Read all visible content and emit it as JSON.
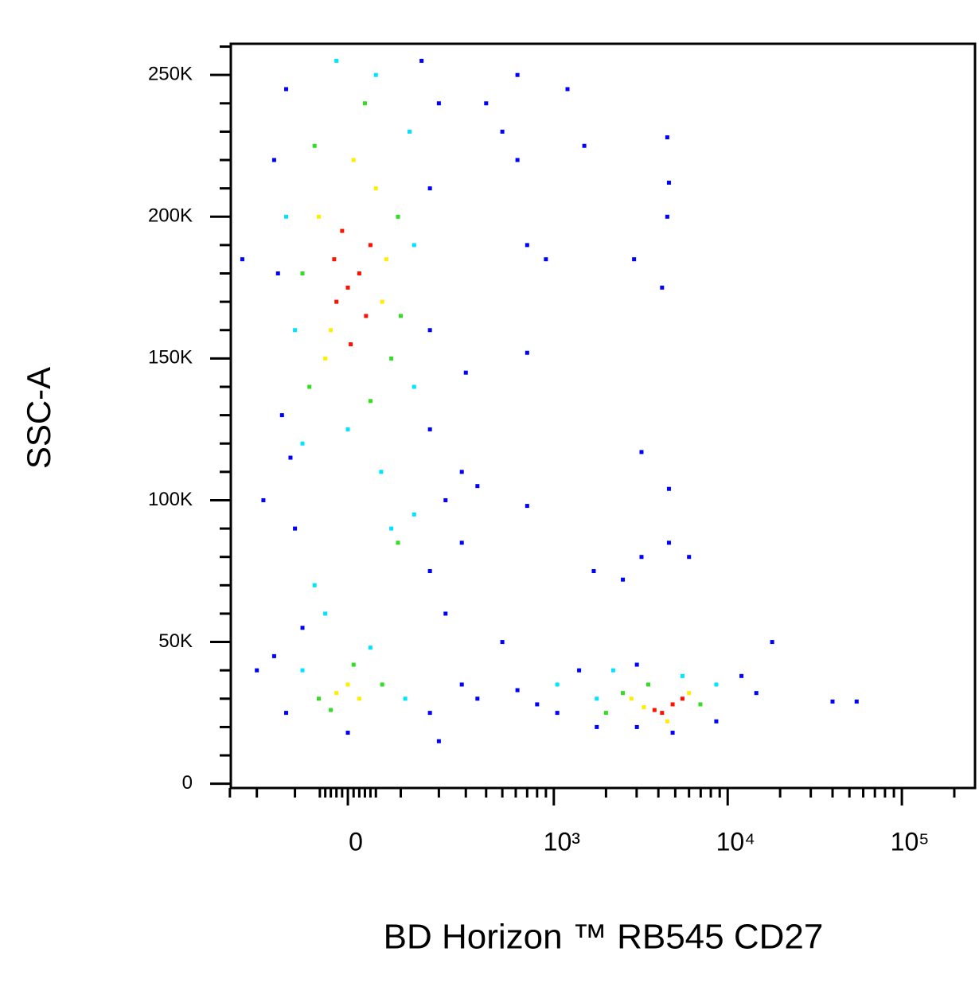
{
  "chart_data": {
    "type": "scatter",
    "x_label": "BD Horizon ™ RB545 CD27",
    "y_label": "SSC-A",
    "xscale": "biexponential",
    "xlim": [
      -296,
      263000
    ],
    "ylim": [
      -1500,
      261000
    ],
    "xticks": [
      0,
      {
        "value": 1000,
        "label": "10³"
      },
      {
        "value": 10000,
        "label": "10⁴"
      },
      {
        "value": 100000,
        "label": "10⁵"
      }
    ],
    "yticks": [
      0,
      {
        "value": 50000,
        "label": "50K"
      },
      {
        "value": 100000,
        "label": "100K"
      },
      {
        "value": 150000,
        "label": "150K"
      },
      {
        "value": 200000,
        "label": "200K"
      },
      {
        "value": 250000,
        "label": "250K"
      }
    ],
    "xminorticks": [
      -300,
      -200,
      -100,
      -50,
      -40,
      -30,
      -20,
      -10,
      10,
      20,
      30,
      40,
      50,
      100,
      200,
      300,
      400,
      500,
      600,
      700,
      800,
      900,
      2000,
      3000,
      4000,
      5000,
      6000,
      7000,
      8000,
      9000,
      20000,
      30000,
      40000,
      50000,
      60000,
      70000,
      80000,
      90000,
      200000
    ],
    "yminorticks": [
      10000,
      20000,
      30000,
      40000,
      60000,
      70000,
      80000,
      90000,
      110000,
      120000,
      130000,
      140000,
      160000,
      170000,
      180000,
      190000,
      210000,
      220000,
      230000,
      240000,
      260000
    ],
    "series": [
      {
        "color": "#0000ff",
        "x": [
          -150,
          173,
          -140,
          173,
          200,
          -120,
          150,
          -130,
          173,
          -110,
          222,
          -100,
          283,
          173,
          -84,
          222,
          -150,
          -120,
          173,
          283,
          354,
          614,
          800,
          1047,
          1400,
          1770,
          3010,
          3010,
          4830,
          8600,
          12000,
          14600,
          18000,
          500,
          283,
          354,
          400,
          500,
          614,
          614,
          700,
          900,
          1200,
          1500,
          2900,
          4200,
          4500,
          4600,
          4500,
          3200,
          4600,
          4600,
          3200,
          1700,
          2500,
          6000,
          700,
          700,
          40000,
          55000,
          -250,
          -200,
          300,
          -180,
          200,
          0
        ],
        "values": [
          220000,
          210000,
          180000,
          160000,
          240000,
          245000,
          255000,
          130000,
          125000,
          115000,
          100000,
          90000,
          85000,
          75000,
          55000,
          60000,
          45000,
          25000,
          25000,
          35000,
          30000,
          33000,
          28000,
          25000,
          40000,
          20000,
          20000,
          42000,
          18000,
          22000,
          38000,
          32000,
          50000,
          50000,
          110000,
          105000,
          240000,
          230000,
          250000,
          220000,
          190000,
          185000,
          245000,
          225000,
          185000,
          175000,
          228000,
          212000,
          200000,
          117000,
          104000,
          85000,
          80000,
          75000,
          72000,
          80000,
          98000,
          152000,
          29000,
          29000,
          185000,
          40000,
          145000,
          100000,
          15000,
          18000
        ]
      },
      {
        "color": "#00e5ff",
        "x": [
          -120,
          131,
          -100,
          120,
          50,
          -84,
          131,
          0,
          -20,
          80,
          -60,
          131,
          -84,
          110,
          40,
          1770,
          1047,
          8600,
          2200,
          5500,
          -40,
          60
        ],
        "values": [
          200000,
          190000,
          160000,
          230000,
          250000,
          120000,
          140000,
          125000,
          255000,
          90000,
          70000,
          95000,
          40000,
          30000,
          48000,
          30000,
          35000,
          35000,
          40000,
          38000,
          60000,
          110000
        ]
      },
      {
        "color": "#33dd22",
        "x": [
          -84,
          94,
          80,
          -60,
          30,
          -70,
          100,
          40,
          -52,
          62,
          10,
          -30,
          2500,
          6970,
          3500,
          2000,
          94
        ],
        "values": [
          180000,
          200000,
          150000,
          225000,
          240000,
          140000,
          165000,
          135000,
          30000,
          35000,
          42000,
          26000,
          32000,
          28000,
          35000,
          25000,
          85000
        ]
      },
      {
        "color": "#ffee00",
        "x": [
          -52,
          62,
          -40,
          50,
          10,
          -30,
          70,
          0,
          20,
          -20,
          3300,
          6000,
          4500,
          2800
        ],
        "values": [
          200000,
          170000,
          150000,
          210000,
          220000,
          160000,
          185000,
          35000,
          30000,
          32000,
          27000,
          32000,
          22000,
          30000
        ]
      },
      {
        "color": "#ff1100",
        "x": [
          0,
          -24,
          32,
          -10,
          20,
          5,
          -20,
          40,
          4830,
          4200,
          5500,
          3800
        ],
        "values": [
          175000,
          185000,
          165000,
          195000,
          180000,
          155000,
          170000,
          190000,
          28000,
          25000,
          30000,
          26000
        ]
      }
    ]
  }
}
